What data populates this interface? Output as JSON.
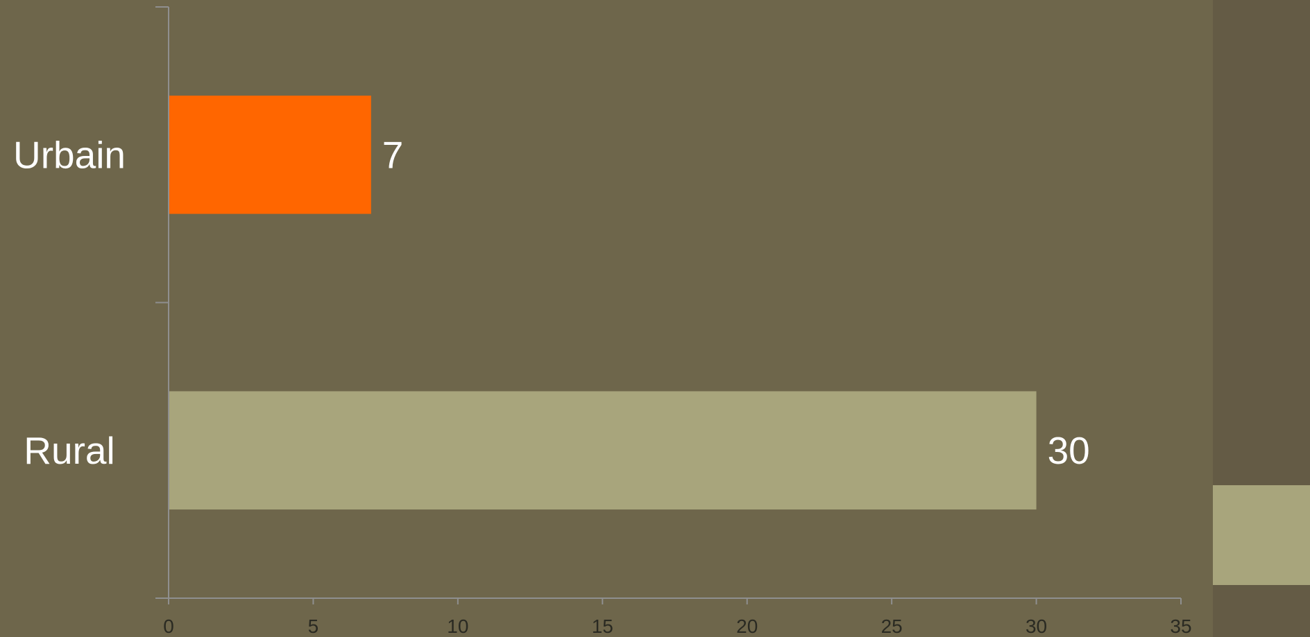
{
  "colors": {
    "background": "#6e664b",
    "side_panel": "#645b45",
    "axis": "#8f8f8f",
    "tick_text": "#2a2a22",
    "category_text": "#ffffff",
    "value_text": "#ffffff"
  },
  "chart_data": {
    "type": "bar",
    "orientation": "horizontal",
    "categories": [
      "Urbain",
      "Rural"
    ],
    "values": [
      7,
      30
    ],
    "value_labels": [
      "7",
      "30"
    ],
    "bar_colors": [
      "#ff6600",
      "#a8a57c"
    ],
    "xlim": [
      0,
      35
    ],
    "x_ticks": [
      0,
      5,
      10,
      15,
      20,
      25,
      30,
      35
    ],
    "x_tick_labels": [
      "0",
      "5",
      "10",
      "15",
      "20",
      "25",
      "30",
      "35"
    ],
    "title": "",
    "xlabel": "",
    "ylabel": "",
    "grid": false,
    "legend": "none"
  },
  "side_panel": {
    "swatch_color": "#a8a57c"
  }
}
